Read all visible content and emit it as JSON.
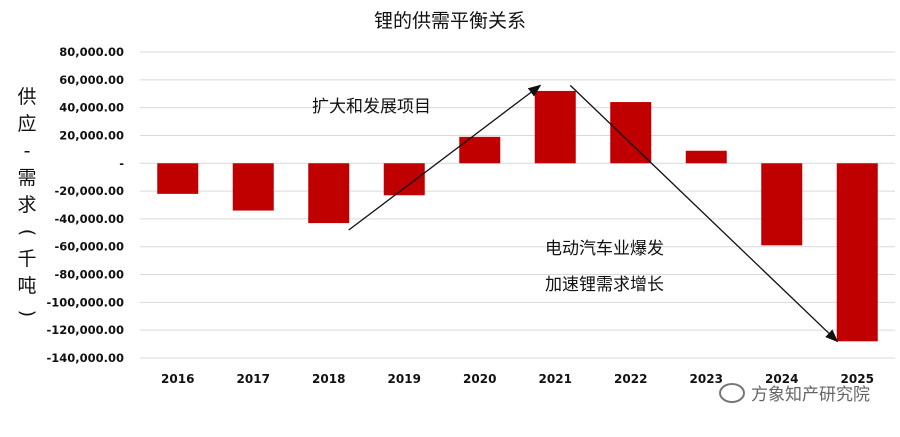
{
  "chart_data": {
    "type": "bar",
    "title": "锂的供需平衡关系",
    "ylabel": [
      "供",
      "应",
      "-",
      "需",
      "求",
      "(",
      "千",
      "吨",
      ")"
    ],
    "categories": [
      "2016",
      "2017",
      "2018",
      "2019",
      "2020",
      "2021",
      "2022",
      "2023",
      "2024",
      "2025"
    ],
    "values": [
      -22000,
      -34000,
      -43000,
      -23000,
      19000,
      52000,
      44000,
      9000,
      -59000,
      -128000
    ],
    "ylim": [
      -140000,
      80000
    ],
    "yticks": [
      80000,
      60000,
      40000,
      20000,
      0,
      -20000,
      -40000,
      -60000,
      -80000,
      -100000,
      -120000,
      -140000
    ],
    "ytick_labels": [
      "80,000.00",
      "60,000.00",
      "40,000.00",
      "20,000.00",
      "-",
      "-20,000.00",
      "-40,000.00",
      "-60,000.00",
      "-80,000.00",
      "-100,000.00",
      "-120,000.00",
      "-140,000.00"
    ],
    "bar_color": "#c00000",
    "grid": true,
    "annotations": [
      {
        "text": "扩大和发展项目"
      },
      {
        "text": "电动汽车业爆发"
      },
      {
        "text": "加速锂需求增长"
      }
    ]
  },
  "watermark": "方象知产研究院"
}
